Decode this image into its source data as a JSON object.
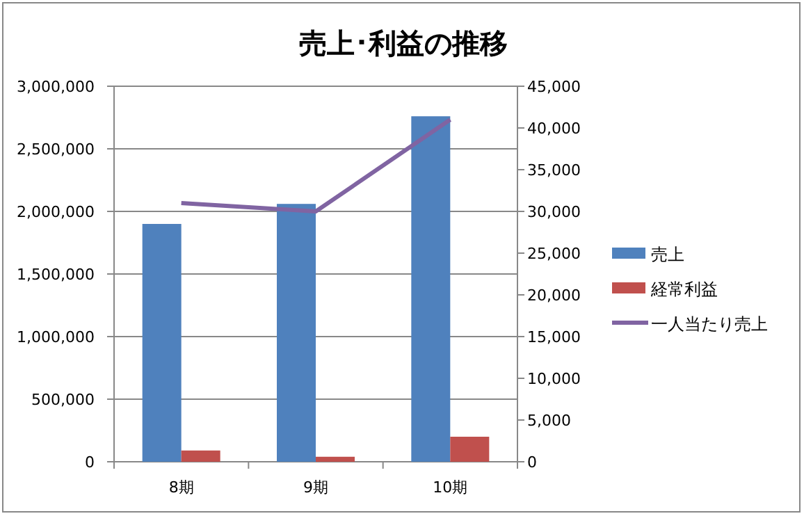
{
  "chart_data": {
    "type": "bar",
    "title": "売上･利益の推移",
    "categories": [
      "8期",
      "9期",
      "10期"
    ],
    "series": [
      {
        "name": "売上",
        "color": "#4f81bd",
        "values": [
          1900000,
          2060000,
          2760000
        ]
      },
      {
        "name": "経常利益",
        "color": "#c0504d",
        "values": [
          90000,
          40000,
          200000
        ]
      },
      {
        "name": "一人当たり売上",
        "color": "#8064a2",
        "type": "line",
        "axis": "y2",
        "values": [
          31000,
          30000,
          41000
        ]
      }
    ],
    "ylim": [
      0,
      3000000
    ],
    "yticks": [
      {
        "value": 0,
        "label": "0"
      },
      {
        "value": 500000,
        "label": "500,000"
      },
      {
        "value": 1000000,
        "label": "1,000,000"
      },
      {
        "value": 1500000,
        "label": "1,500,000"
      },
      {
        "value": 2000000,
        "label": "2,000,000"
      },
      {
        "value": 2500000,
        "label": "2,500,000"
      },
      {
        "value": 3000000,
        "label": "3,000,000"
      }
    ],
    "y2lim": [
      0,
      45000
    ],
    "y2ticks": [
      {
        "value": 0,
        "label": "0"
      },
      {
        "value": 5000,
        "label": "5,000"
      },
      {
        "value": 10000,
        "label": "10,000"
      },
      {
        "value": 15000,
        "label": "15,000"
      },
      {
        "value": 20000,
        "label": "20,000"
      },
      {
        "value": 25000,
        "label": "25,000"
      },
      {
        "value": 30000,
        "label": "30,000"
      },
      {
        "value": 35000,
        "label": "35,000"
      },
      {
        "value": 40000,
        "label": "40,000"
      },
      {
        "value": 45000,
        "label": "45,000"
      }
    ],
    "grid": "y",
    "legend": "right",
    "marker": "none"
  }
}
